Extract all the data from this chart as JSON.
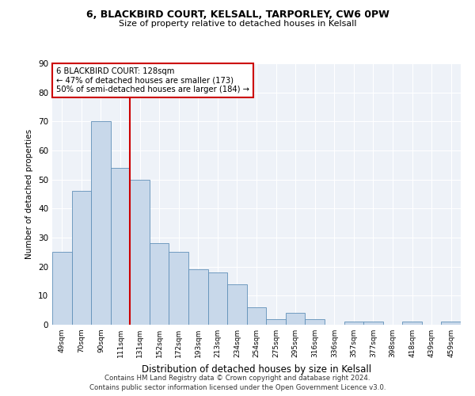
{
  "title1": "6, BLACKBIRD COURT, KELSALL, TARPORLEY, CW6 0PW",
  "title2": "Size of property relative to detached houses in Kelsall",
  "xlabel": "Distribution of detached houses by size in Kelsall",
  "ylabel": "Number of detached properties",
  "bar_color": "#c8d8ea",
  "bar_edge_color": "#6090b8",
  "bg_color": "#eef2f8",
  "categories": [
    "49sqm",
    "70sqm",
    "90sqm",
    "111sqm",
    "131sqm",
    "152sqm",
    "172sqm",
    "193sqm",
    "213sqm",
    "234sqm",
    "254sqm",
    "275sqm",
    "295sqm",
    "316sqm",
    "336sqm",
    "357sqm",
    "377sqm",
    "398sqm",
    "418sqm",
    "439sqm",
    "459sqm"
  ],
  "values": [
    25,
    46,
    70,
    54,
    50,
    28,
    25,
    19,
    18,
    14,
    6,
    2,
    4,
    2,
    0,
    1,
    1,
    0,
    1,
    0,
    1
  ],
  "property_line_x": 3.5,
  "property_line_label": "6 BLACKBIRD COURT: 128sqm",
  "annotation_line1": "← 47% of detached houses are smaller (173)",
  "annotation_line2": "50% of semi-detached houses are larger (184) →",
  "annotation_box_color": "#ffffff",
  "annotation_box_edge": "#cc0000",
  "vline_color": "#cc0000",
  "footer1": "Contains HM Land Registry data © Crown copyright and database right 2024.",
  "footer2": "Contains public sector information licensed under the Open Government Licence v3.0.",
  "ylim": [
    0,
    90
  ],
  "yticks": [
    0,
    10,
    20,
    30,
    40,
    50,
    60,
    70,
    80,
    90
  ]
}
